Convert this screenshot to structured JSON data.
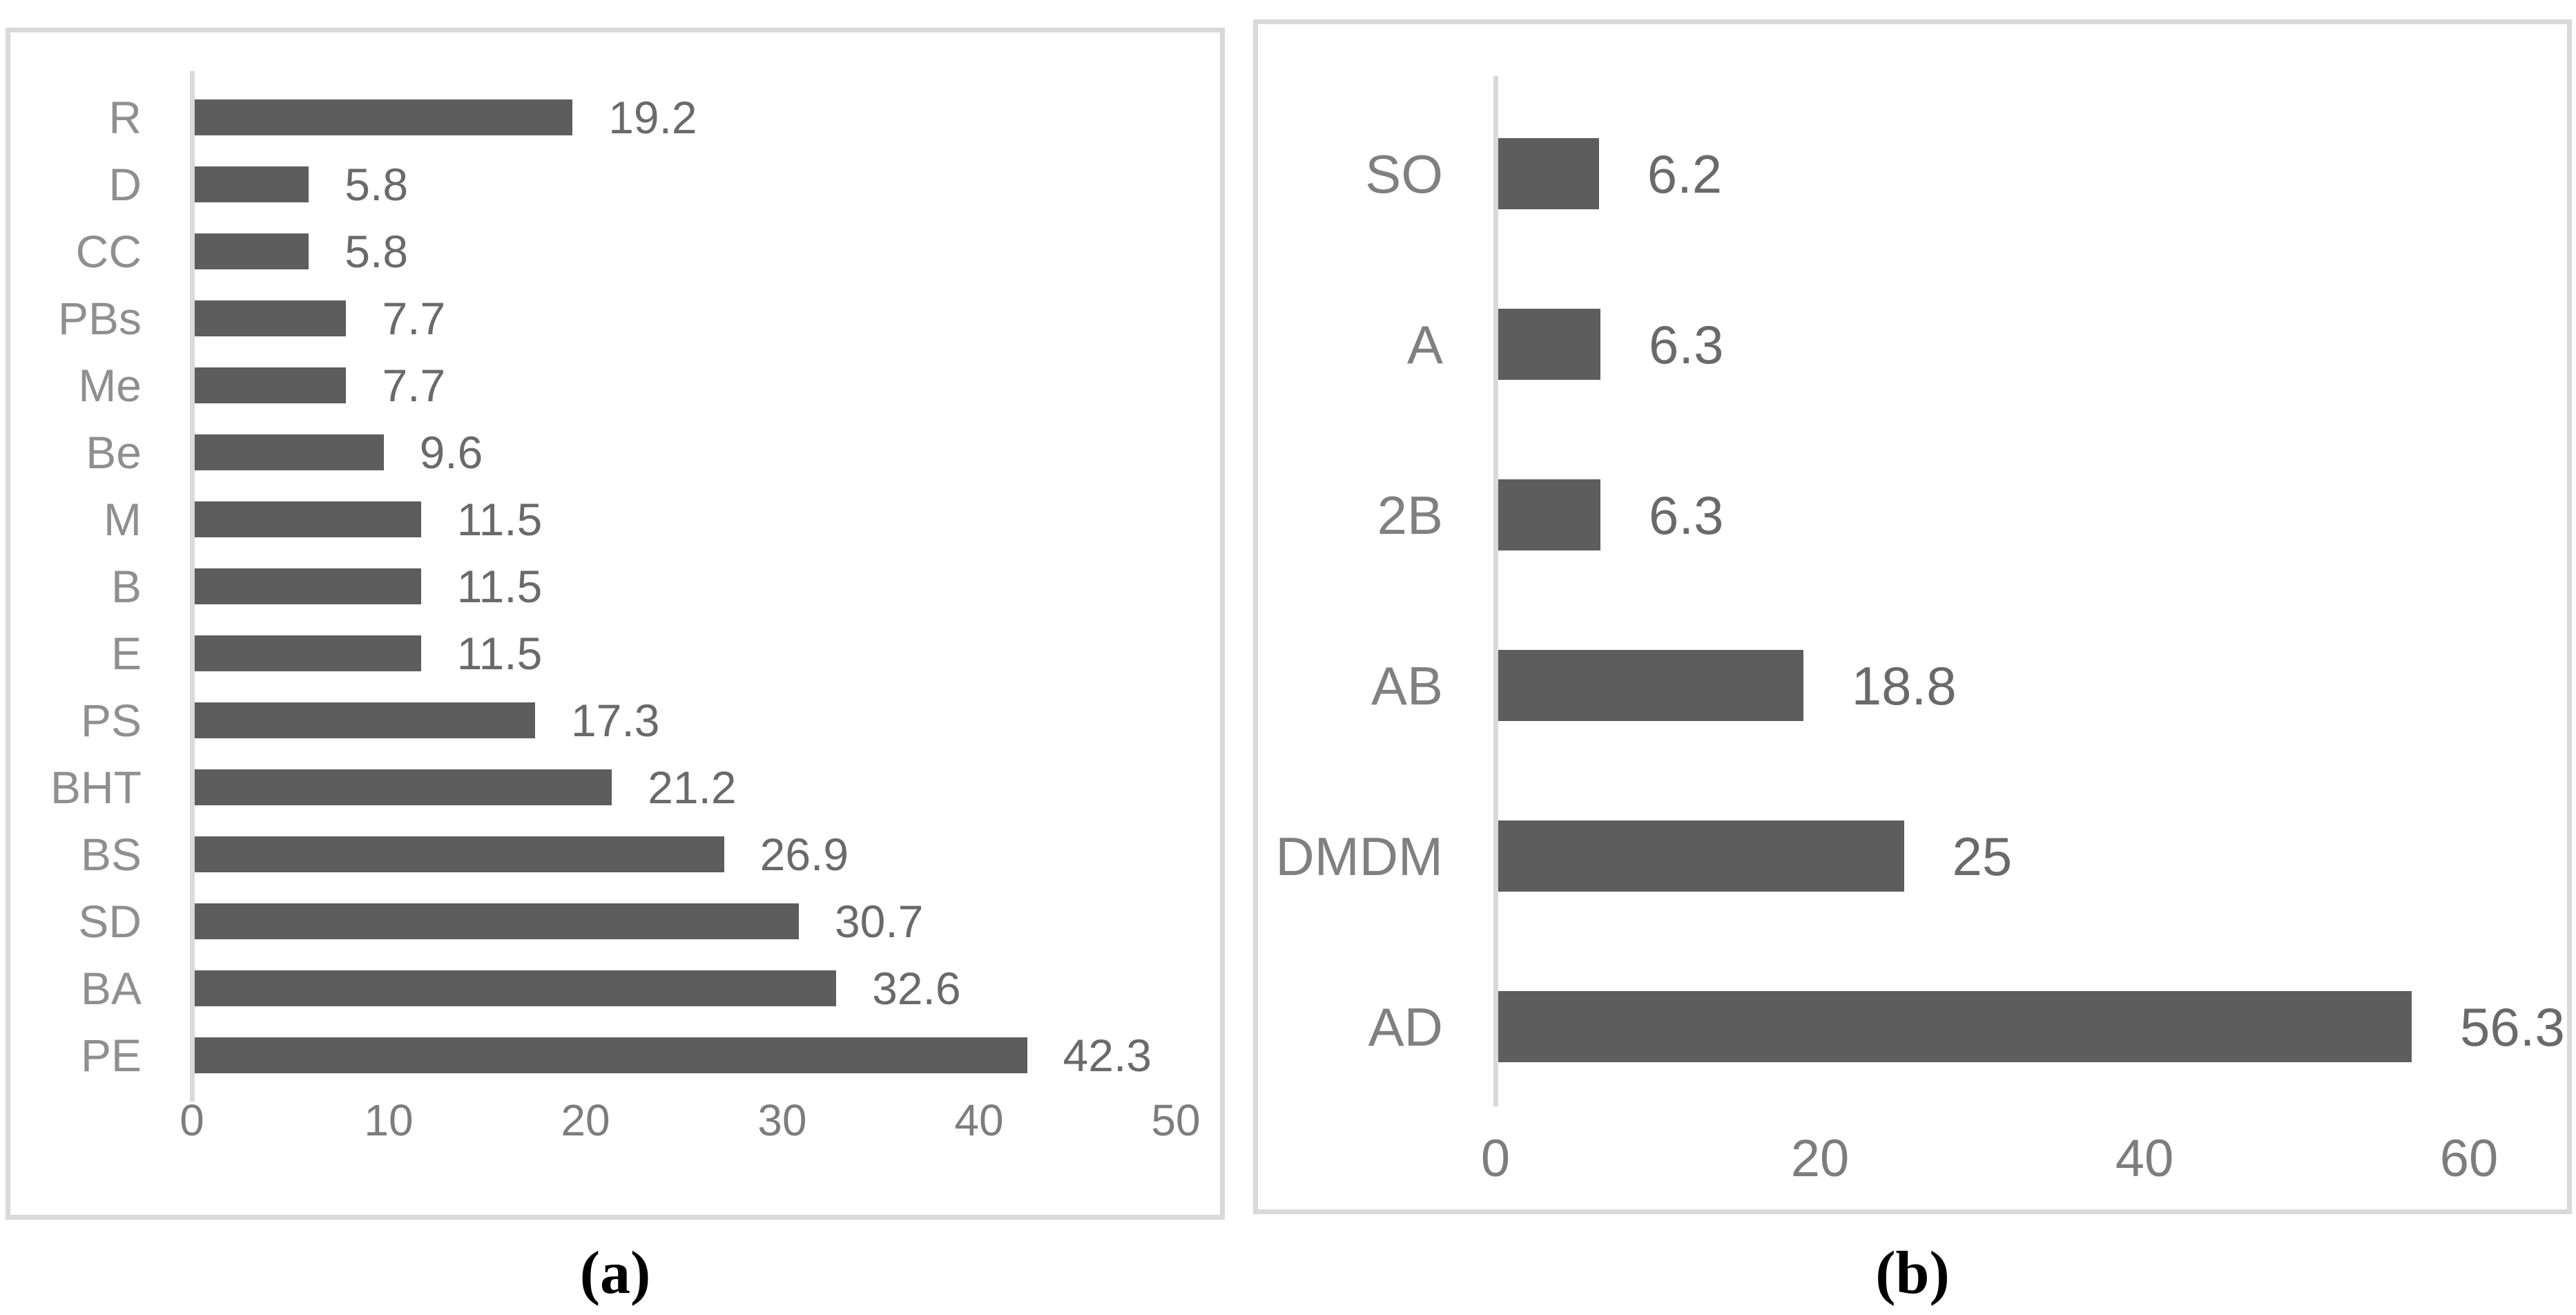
{
  "figure": {
    "description": "Two-panel horizontal bar chart figure",
    "background": "#ffffff"
  },
  "colors": {
    "bar": "#5d5d5d",
    "category_label_a": "#8f8f8f",
    "category_label_b": "#808080",
    "value_label": "#6a6a6a",
    "tick_label": "#7d7d7d",
    "panel_border": "#d9d9d9",
    "axis_line": "#d9d9d9"
  },
  "chart_data": [
    {
      "id": "a",
      "caption": "(a)",
      "type": "bar",
      "orientation": "horizontal",
      "title": "",
      "xlabel": "",
      "ylabel": "",
      "categories": [
        "R",
        "D",
        "CC",
        "PBs",
        "Me",
        "Be",
        "M",
        "B",
        "E",
        "PS",
        "BHT",
        "BS",
        "SD",
        "BA",
        "PE"
      ],
      "values": [
        19.2,
        5.8,
        5.8,
        7.7,
        7.7,
        9.6,
        11.5,
        11.5,
        11.5,
        17.3,
        21.2,
        26.9,
        30.7,
        32.6,
        42.3
      ],
      "value_labels": [
        "19.2",
        "5.8",
        "5.8",
        "7.7",
        "7.7",
        "9.6",
        "11.5",
        "11.5",
        "11.5",
        "17.3",
        "21.2",
        "26.9",
        "30.7",
        "32.6",
        "42.3"
      ],
      "x_ticks": [
        "0",
        "10",
        "20",
        "30",
        "40",
        "50"
      ],
      "xlim": [
        0,
        50
      ],
      "grid": false,
      "legend": false,
      "data_labels_position": "outside-end"
    },
    {
      "id": "b",
      "caption": "(b)",
      "type": "bar",
      "orientation": "horizontal",
      "title": "",
      "xlabel": "",
      "ylabel": "",
      "categories": [
        "SO",
        "A",
        "2B",
        "AB",
        "DMDM",
        "AD"
      ],
      "values": [
        6.2,
        6.3,
        6.3,
        18.8,
        25,
        56.3
      ],
      "value_labels": [
        "6.2",
        "6.3",
        "6.3",
        "18.8",
        "25",
        "56.3"
      ],
      "x_ticks": [
        "0",
        "20",
        "40",
        "60"
      ],
      "xlim": [
        0,
        60
      ],
      "grid": false,
      "legend": false,
      "data_labels_position": "outside-end"
    }
  ]
}
